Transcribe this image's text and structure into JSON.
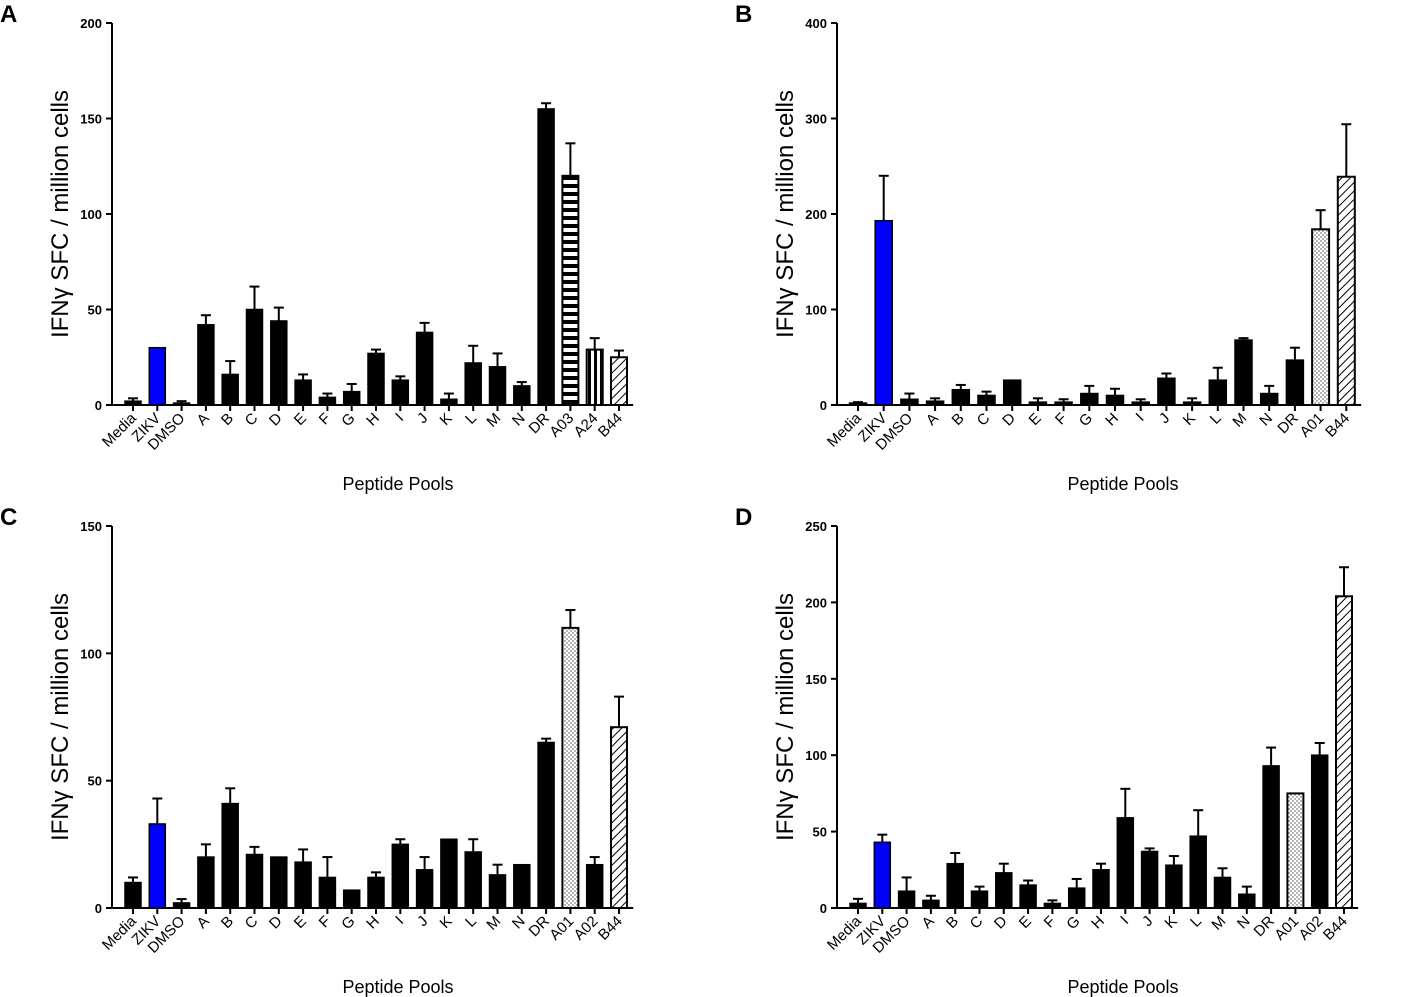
{
  "colors": {
    "black": "#000000",
    "blue": "#0000ff",
    "white": "#ffffff"
  },
  "chart_data": [
    {
      "panel": "A",
      "type": "bar",
      "xlabel": "Peptide Pools",
      "ylabel": "IFNγ SFC / million cells",
      "ylim": [
        0,
        200
      ],
      "yticks": [
        0,
        50,
        100,
        150,
        200
      ],
      "categories": [
        "Media",
        "ZIKV",
        "DMSO",
        "A",
        "B",
        "C",
        "D",
        "E",
        "F",
        "G",
        "H",
        "I",
        "J",
        "K",
        "L",
        "M",
        "N",
        "DR",
        "A03",
        "A24",
        "B44"
      ],
      "values": [
        2,
        30,
        1,
        42,
        16,
        50,
        44,
        13,
        4,
        7,
        27,
        13,
        38,
        3,
        22,
        20,
        10,
        155,
        120,
        29,
        25
      ],
      "errors": [
        1.5,
        0,
        1,
        5,
        7,
        12,
        7,
        3,
        2,
        4,
        2,
        2,
        5,
        3,
        9,
        7,
        2,
        3,
        17,
        6,
        3.5
      ],
      "fills": [
        "black",
        "blue",
        "black",
        "black",
        "black",
        "black",
        "black",
        "black",
        "black",
        "black",
        "black",
        "black",
        "black",
        "black",
        "black",
        "black",
        "black",
        "black",
        "hstripe",
        "vstripe",
        "diag"
      ]
    },
    {
      "panel": "B",
      "type": "bar",
      "xlabel": "Peptide Pools",
      "ylabel": "IFNγ SFC / million cells",
      "ylim": [
        0,
        400
      ],
      "yticks": [
        0,
        100,
        200,
        300,
        400
      ],
      "categories": [
        "Media",
        "ZIKV",
        "DMSO",
        "A",
        "B",
        "C",
        "D",
        "E",
        "F",
        "G",
        "H",
        "I",
        "J",
        "K",
        "L",
        "M",
        "N",
        "DR",
        "A01",
        "B44"
      ],
      "values": [
        2,
        193,
        6,
        4,
        16,
        10,
        26,
        3,
        3,
        12,
        10,
        3,
        28,
        3,
        26,
        68,
        12,
        47,
        184,
        239
      ],
      "errors": [
        1,
        47,
        6,
        3,
        5,
        4,
        0,
        4,
        3,
        8,
        7,
        3,
        5,
        4,
        13,
        2,
        8,
        13,
        20,
        55
      ],
      "fills": [
        "black",
        "blue",
        "black",
        "black",
        "black",
        "black",
        "black",
        "black",
        "black",
        "black",
        "black",
        "black",
        "black",
        "black",
        "black",
        "black",
        "black",
        "black",
        "dots",
        "diag"
      ]
    },
    {
      "panel": "C",
      "type": "bar",
      "xlabel": "Peptide Pools",
      "ylabel": "IFNγ SFC / million cells",
      "ylim": [
        0,
        150
      ],
      "yticks": [
        0,
        50,
        100,
        150
      ],
      "categories": [
        "Media",
        "ZIKV",
        "DMSO",
        "A",
        "B",
        "C",
        "D",
        "E",
        "F",
        "G",
        "H",
        "I",
        "J",
        "K",
        "L",
        "M",
        "N",
        "DR",
        "A01",
        "A02",
        "B44"
      ],
      "values": [
        10,
        33,
        2,
        20,
        41,
        21,
        20,
        18,
        12,
        7,
        12,
        25,
        15,
        27,
        22,
        13,
        17,
        65,
        110,
        17,
        71
      ],
      "errors": [
        2,
        10,
        1.5,
        5,
        6,
        3,
        0,
        5,
        8,
        0,
        2,
        2,
        5,
        0,
        5,
        4,
        0,
        1.5,
        7,
        3,
        12
      ],
      "fills": [
        "black",
        "blue",
        "black",
        "black",
        "black",
        "black",
        "black",
        "black",
        "black",
        "black",
        "black",
        "black",
        "black",
        "black",
        "black",
        "black",
        "black",
        "black",
        "dots",
        "black",
        "diag"
      ]
    },
    {
      "panel": "D",
      "type": "bar",
      "xlabel": "Peptide Pools",
      "ylabel": "IFNγ SFC / million cells",
      "ylim": [
        0,
        250
      ],
      "yticks": [
        0,
        50,
        100,
        150,
        200,
        250
      ],
      "categories": [
        "Media",
        "ZIKV",
        "DMSO",
        "A",
        "B",
        "C",
        "D",
        "E",
        "F",
        "G",
        "H",
        "I",
        "J",
        "K",
        "L",
        "M",
        "N",
        "DR",
        "A01",
        "A02",
        "B44"
      ],
      "values": [
        3,
        43,
        11,
        5,
        29,
        11,
        23,
        15,
        3,
        13,
        25,
        59,
        37,
        28,
        47,
        20,
        9,
        93,
        75,
        100,
        204
      ],
      "errors": [
        3,
        5,
        9,
        3,
        7,
        3,
        6,
        3,
        2,
        6,
        4,
        19,
        2,
        6,
        17,
        6,
        5,
        12,
        0,
        8,
        19
      ],
      "fills": [
        "black",
        "blue",
        "black",
        "black",
        "black",
        "black",
        "black",
        "black",
        "black",
        "black",
        "black",
        "black",
        "black",
        "black",
        "black",
        "black",
        "black",
        "black",
        "dots",
        "black",
        "diag"
      ]
    }
  ]
}
